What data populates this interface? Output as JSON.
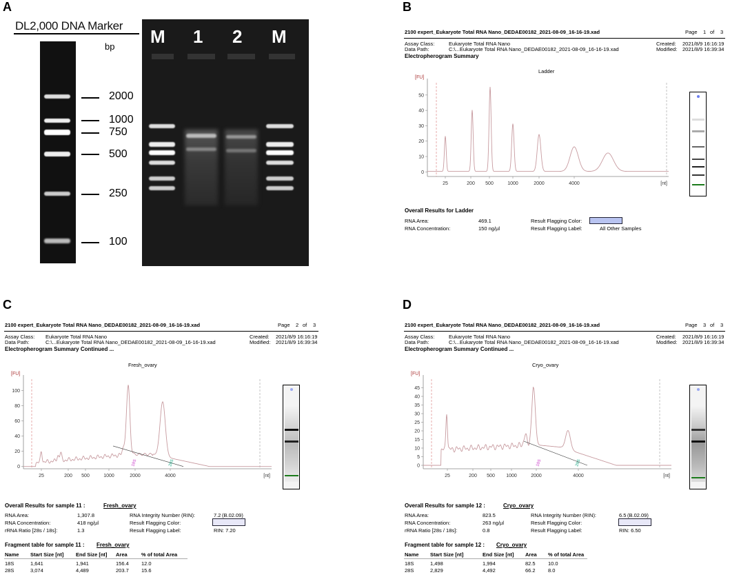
{
  "panel_labels": {
    "a": "A",
    "b": "B",
    "c": "C",
    "d": "D"
  },
  "gel": {
    "marker_title": "DL2,000 DNA Marker",
    "unit": "bp",
    "marker_sizes": [
      "2000",
      "1000",
      "750",
      "500",
      "250",
      "100"
    ],
    "lane_labels": [
      "M",
      "1",
      "2",
      "M"
    ]
  },
  "reports": [
    {
      "id": "b",
      "title": "2100 expert_Eukaryote Total RNA Nano_DEDAE00182_2021-08-09_16-16-19.xad",
      "page_label": "Page",
      "page_num": "1",
      "page_of": "of",
      "page_total": "3",
      "assay_class_label": "Assay Class:",
      "assay_class": "Eukaryote Total RNA Nano",
      "data_path_label": "Data Path:",
      "data_path": "C:\\...Eukaryote Total RNA Nano_DEDAE00182_2021-08-09_16-16-19.xad",
      "created_label": "Created:",
      "created": "2021/8/9 16:16:19",
      "modified_label": "Modified:",
      "modified": "2021/8/9 16:39:34",
      "section_title": "Electropherogram Summary",
      "sample_name": "Ladder",
      "results_title": "Overall Results for Ladder",
      "rna_area_label": "RNA Area:",
      "rna_area": "469.1",
      "rna_conc_label": "RNA Concentration:",
      "rna_conc": "150 ng/µl",
      "flag_color_label": "Result Flagging Color:",
      "flag_label_label": "Result Flagging Label:",
      "flag_label": "All Other Samples",
      "flag_color": "#b9c4f1"
    },
    {
      "id": "c",
      "title": "2100 expert_Eukaryote Total RNA Nano_DEDAE00182_2021-08-09_16-16-19.xad",
      "page_label": "Page",
      "page_num": "2",
      "page_of": "of",
      "page_total": "3",
      "assay_class_label": "Assay Class:",
      "assay_class": "Eukaryote Total RNA Nano",
      "data_path_label": "Data Path:",
      "data_path": "C:\\...Eukaryote Total RNA Nano_DEDAE00182_2021-08-09_16-16-19.xad",
      "created_label": "Created:",
      "created": "2021/8/9 16:16:19",
      "modified_label": "Modified:",
      "modified": "2021/8/9 16:39:34",
      "section_title": "Electropherogram Summary Continued ...",
      "sample_name": "Fresh_ovary",
      "results_title": "Overall Results for sample 11 :",
      "results_sample": "Fresh_ovary",
      "rna_area_label": "RNA Area:",
      "rna_area": "1,307.8",
      "rna_conc_label": "RNA Concentration:",
      "rna_conc": "418 ng/µl",
      "rrna_label": "rRNA Ratio [28s / 18s]:",
      "rrna": "1.3",
      "rin_label": "RNA Integrity Number (RIN):",
      "rin": "7.2",
      "rin_ver": "(B.02.09)",
      "flag_color_label": "Result Flagging Color:",
      "flag_label_label": "Result Flagging Label:",
      "flag_label": "RIN: 7.20",
      "flag_color": "#e8e8f8",
      "frag_title": "Fragment table for sample 11 :",
      "frag_sample": "Fresh_ovary",
      "frag_headers": [
        "Name",
        "Start Size [nt]",
        "End Size [nt]",
        "Area",
        "% of total Area"
      ],
      "frag_rows": [
        [
          "18S",
          "1,641",
          "1,941",
          "156.4",
          "12.0"
        ],
        [
          "28S",
          "3,074",
          "4,489",
          "203.7",
          "15.6"
        ]
      ]
    },
    {
      "id": "d",
      "title": "2100 expert_Eukaryote Total RNA Nano_DEDAE00182_2021-08-09_16-16-19.xad",
      "page_label": "Page",
      "page_num": "3",
      "page_of": "of",
      "page_total": "3",
      "assay_class_label": "Assay Class:",
      "assay_class": "Eukaryote Total RNA Nano",
      "data_path_label": "Data Path:",
      "data_path": "C:\\...Eukaryote Total RNA Nano_DEDAE00182_2021-08-09_16-16-19.xad",
      "created_label": "Created:",
      "created": "2021/8/9 16:16:19",
      "modified_label": "Modified:",
      "modified": "2021/8/9 16:39:34",
      "section_title": "Electropherogram Summary Continued ...",
      "sample_name": "Cryo_ovary",
      "results_title": "Overall Results for sample 12 :",
      "results_sample": "Cryo_ovary",
      "rna_area_label": "RNA Area:",
      "rna_area": "823.5",
      "rna_conc_label": "RNA Concentration:",
      "rna_conc": "263 ng/µl",
      "rrna_label": "rRNA Ratio [28s / 18s]:",
      "rrna": "0.8",
      "rin_label": "RNA Integrity Number (RIN):",
      "rin": "6.5",
      "rin_ver": "(B.02.09)",
      "flag_color_label": "Result Flagging Color:",
      "flag_label_label": "Result Flagging Label:",
      "flag_label": "RIN: 6.50",
      "flag_color": "#e8e8f8",
      "frag_title": "Fragment table for sample 12 :",
      "frag_sample": "Cryo_ovary",
      "frag_headers": [
        "Name",
        "Start Size [nt]",
        "End Size [nt]",
        "Area",
        "% of total Area"
      ],
      "frag_rows": [
        [
          "18S",
          "1,498",
          "1,994",
          "82.5",
          "10.0"
        ],
        [
          "28S",
          "2,829",
          "4,492",
          "66.2",
          "8.0"
        ]
      ]
    }
  ],
  "chart_data": [
    {
      "type": "line",
      "title": "Ladder",
      "ylabel": "[FU]",
      "xlabel": "[nt]",
      "ylim": [
        -3,
        58
      ],
      "yticks": [
        0,
        10,
        20,
        30,
        40,
        50
      ],
      "xticks": [
        "25",
        "200",
        "500",
        "1000",
        "2000",
        "4000"
      ],
      "series": [
        {
          "values": [
            {
              "x": "25",
              "y": 23
            },
            {
              "x": "200",
              "y": 40
            },
            {
              "x": "500",
              "y": 55
            },
            {
              "x": "1000",
              "y": 31
            },
            {
              "x": "2000",
              "y": 24
            },
            {
              "x": "4000",
              "y": 16
            },
            {
              "x": "6000",
              "y": 12
            }
          ]
        }
      ]
    },
    {
      "type": "line",
      "title": "Fresh_ovary",
      "ylabel": "[FU]",
      "xlabel": "[nt]",
      "ylim": [
        -3,
        115
      ],
      "yticks": [
        0,
        20,
        40,
        60,
        80,
        100
      ],
      "xticks": [
        "25",
        "200",
        "500",
        "1000",
        "2000",
        "4000"
      ],
      "peak_labels": [
        "18S",
        "28S"
      ],
      "series": [
        {
          "values": [
            {
              "x": "25",
              "y": 19
            },
            {
              "x": "200",
              "y": 21
            },
            {
              "x": "1500",
              "y": 28
            },
            {
              "x": "1800",
              "y": 107
            },
            {
              "x": "3600",
              "y": 81
            }
          ]
        }
      ]
    },
    {
      "type": "line",
      "title": "Cryo_ovary",
      "ylabel": "[FU]",
      "xlabel": "[nt]",
      "ylim": [
        -2,
        50
      ],
      "yticks": [
        0,
        5,
        10,
        15,
        20,
        25,
        30,
        35,
        40,
        45
      ],
      "xticks": [
        "25",
        "200",
        "500",
        "1000",
        "2000",
        "4000"
      ],
      "peak_labels": [
        "18S",
        "28S"
      ],
      "series": [
        {
          "values": [
            {
              "x": "25",
              "y": 22
            },
            {
              "x": "200",
              "y": 12
            },
            {
              "x": "1500",
              "y": 16
            },
            {
              "x": "1800",
              "y": 45
            },
            {
              "x": "3600",
              "y": 23
            }
          ]
        }
      ]
    }
  ]
}
